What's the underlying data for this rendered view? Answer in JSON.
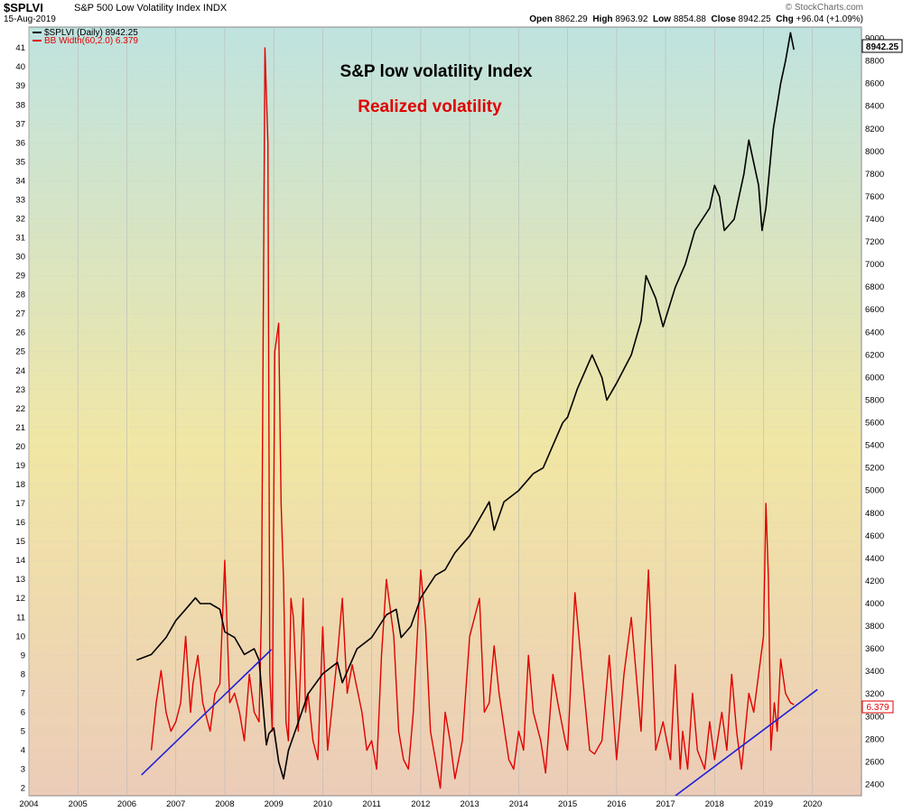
{
  "header": {
    "ticker": "$SPLVI",
    "name": "S&P 500 Low Volatility Index",
    "exchange": "INDX",
    "date": "15-Aug-2019",
    "watermark": "© StockCharts.com",
    "open_label": "Open",
    "open": "8862.29",
    "high_label": "High",
    "high": "8963.92",
    "low_label": "Low",
    "low": "8854.88",
    "close_label": "Close",
    "close": "8942.25",
    "chg_label": "Chg",
    "chg": "+96.04 (+1.09%)"
  },
  "legend": [
    {
      "label": "$SPLVI (Daily) 8942.25",
      "color": "#000000"
    },
    {
      "label": "BB Width(60,2.0) 6.379",
      "color": "#e00000"
    }
  ],
  "annotations": [
    {
      "text": "S&P low volatility Index",
      "color": "#000000"
    },
    {
      "text": "Realized volatility",
      "color": "#e00000"
    }
  ],
  "last_value_tags": {
    "price": "8942.25",
    "bbw": "6.379"
  },
  "colors": {
    "price": "#000000",
    "bbw": "#e00000",
    "trendline": "#1f1fd6",
    "bg_top": "#bfe3e0",
    "bg_mid": "#f1e6a4",
    "bg_bottom": "#ecccb8"
  },
  "chart_data": {
    "type": "line",
    "x_axis": {
      "ticks": [
        "2004",
        "2005",
        "2006",
        "2007",
        "2008",
        "2009",
        "2010",
        "2011",
        "2012",
        "2013",
        "2014",
        "2015",
        "2016",
        "2017",
        "2018",
        "2019",
        "2020"
      ],
      "range": [
        2004.0,
        2021.0
      ]
    },
    "left_axis": {
      "ticks": [
        2,
        3,
        4,
        5,
        6,
        7,
        8,
        9,
        10,
        11,
        12,
        13,
        14,
        15,
        16,
        17,
        18,
        19,
        20,
        21,
        22,
        23,
        24,
        25,
        26,
        27,
        28,
        29,
        30,
        31,
        32,
        33,
        34,
        35,
        36,
        37,
        38,
        39,
        40,
        41
      ],
      "range": [
        1.6,
        42.1
      ]
    },
    "right_axis": {
      "ticks": [
        2400,
        2600,
        2800,
        3000,
        3200,
        3400,
        3600,
        3800,
        4000,
        4200,
        4400,
        4600,
        4800,
        5000,
        5200,
        5400,
        5600,
        5800,
        6000,
        6200,
        6400,
        6600,
        6800,
        7000,
        7200,
        7400,
        7600,
        7800,
        8000,
        8200,
        8400,
        8600,
        8800,
        9000
      ],
      "range": [
        2300,
        9100
      ]
    },
    "series": [
      {
        "name": "$SPLVI (Daily)",
        "axis": "right",
        "x": [
          2006.2,
          2006.5,
          2006.8,
          2007.0,
          2007.2,
          2007.4,
          2007.5,
          2007.7,
          2007.9,
          2008.0,
          2008.2,
          2008.4,
          2008.6,
          2008.7,
          2008.8,
          2008.85,
          2008.9,
          2009.0,
          2009.1,
          2009.2,
          2009.3,
          2009.5,
          2009.7,
          2010.0,
          2010.3,
          2010.4,
          2010.5,
          2010.7,
          2011.0,
          2011.3,
          2011.5,
          2011.6,
          2011.8,
          2012.0,
          2012.3,
          2012.5,
          2012.7,
          2013.0,
          2013.2,
          2013.4,
          2013.5,
          2013.7,
          2014.0,
          2014.2,
          2014.3,
          2014.5,
          2014.7,
          2014.9,
          2015.0,
          2015.2,
          2015.4,
          2015.5,
          2015.7,
          2015.8,
          2016.0,
          2016.3,
          2016.5,
          2016.6,
          2016.8,
          2016.95,
          2017.2,
          2017.4,
          2017.6,
          2017.9,
          2018.0,
          2018.1,
          2018.2,
          2018.4,
          2018.6,
          2018.7,
          2018.8,
          2018.9,
          2018.97,
          2019.05,
          2019.2,
          2019.35,
          2019.45,
          2019.55,
          2019.62
        ],
        "values": [
          3500,
          3550,
          3700,
          3850,
          3950,
          4050,
          4000,
          4000,
          3950,
          3750,
          3700,
          3550,
          3600,
          3500,
          3000,
          2750,
          2850,
          2900,
          2600,
          2450,
          2700,
          2950,
          3200,
          3380,
          3480,
          3300,
          3400,
          3600,
          3700,
          3900,
          3950,
          3700,
          3800,
          4050,
          4250,
          4300,
          4450,
          4600,
          4750,
          4900,
          4650,
          4900,
          5000,
          5100,
          5150,
          5200,
          5400,
          5600,
          5650,
          5900,
          6100,
          6200,
          6000,
          5800,
          5950,
          6200,
          6500,
          6900,
          6700,
          6450,
          6800,
          7000,
          7300,
          7500,
          7700,
          7600,
          7300,
          7400,
          7800,
          8100,
          7900,
          7700,
          7300,
          7500,
          8200,
          8600,
          8800,
          9050,
          8900
        ]
      },
      {
        "name": "BB Width(60,2.0)",
        "axis": "left",
        "x": [
          2006.5,
          2006.6,
          2006.7,
          2006.8,
          2006.9,
          2007.0,
          2007.1,
          2007.2,
          2007.3,
          2007.35,
          2007.45,
          2007.55,
          2007.7,
          2007.8,
          2007.9,
          2008.0,
          2008.1,
          2008.2,
          2008.3,
          2008.4,
          2008.5,
          2008.6,
          2008.7,
          2008.75,
          2008.82,
          2008.88,
          2008.92,
          2008.97,
          2009.02,
          2009.1,
          2009.15,
          2009.2,
          2009.25,
          2009.3,
          2009.35,
          2009.4,
          2009.5,
          2009.6,
          2009.65,
          2009.7,
          2009.8,
          2009.9,
          2010.0,
          2010.1,
          2010.3,
          2010.4,
          2010.5,
          2010.6,
          2010.8,
          2010.9,
          2011.0,
          2011.1,
          2011.2,
          2011.3,
          2011.45,
          2011.55,
          2011.65,
          2011.75,
          2011.85,
          2012.0,
          2012.1,
          2012.2,
          2012.3,
          2012.4,
          2012.5,
          2012.6,
          2012.7,
          2012.85,
          2013.0,
          2013.2,
          2013.3,
          2013.4,
          2013.5,
          2013.6,
          2013.8,
          2013.9,
          2014.0,
          2014.1,
          2014.2,
          2014.3,
          2014.45,
          2014.55,
          2014.7,
          2014.8,
          2014.95,
          2015.0,
          2015.15,
          2015.3,
          2015.45,
          2015.55,
          2015.7,
          2015.85,
          2016.0,
          2016.15,
          2016.3,
          2016.5,
          2016.65,
          2016.8,
          2016.95,
          2017.1,
          2017.2,
          2017.3,
          2017.35,
          2017.45,
          2017.55,
          2017.65,
          2017.8,
          2017.9,
          2018.0,
          2018.15,
          2018.25,
          2018.35,
          2018.45,
          2018.55,
          2018.7,
          2018.8,
          2018.9,
          2019.0,
          2019.05,
          2019.1,
          2019.15,
          2019.22,
          2019.28,
          2019.35,
          2019.45,
          2019.55,
          2019.62
        ],
        "values": [
          4.0,
          6.5,
          8.2,
          6.0,
          5.0,
          5.5,
          6.5,
          10.0,
          6.0,
          7.5,
          9.0,
          6.5,
          5.0,
          7.0,
          7.5,
          14.0,
          6.5,
          7.0,
          6.0,
          4.5,
          8.0,
          6.0,
          5.5,
          11.5,
          41.0,
          36.0,
          8.0,
          5.0,
          25.0,
          26.5,
          17.0,
          13.0,
          5.5,
          4.5,
          12.0,
          11.0,
          5.0,
          12.0,
          6.0,
          7.0,
          4.5,
          3.5,
          10.5,
          4.0,
          9.0,
          12.0,
          7.0,
          8.5,
          6.0,
          4.0,
          4.5,
          3.0,
          9.0,
          13.0,
          10.0,
          5.0,
          3.5,
          3.0,
          6.0,
          13.5,
          10.5,
          5.0,
          3.5,
          2.0,
          6.0,
          4.5,
          2.5,
          4.5,
          10.0,
          12.0,
          6.0,
          6.5,
          9.5,
          7.0,
          3.5,
          3.0,
          5.0,
          4.0,
          9.0,
          6.0,
          4.5,
          2.8,
          8.0,
          6.5,
          4.5,
          4.0,
          12.3,
          8.0,
          4.0,
          3.8,
          4.5,
          9.0,
          3.5,
          8.0,
          11.0,
          5.0,
          13.5,
          4.0,
          5.5,
          3.5,
          8.5,
          3.0,
          5.0,
          3.0,
          7.0,
          4.0,
          3.0,
          5.5,
          3.5,
          6.0,
          4.0,
          8.0,
          5.0,
          3.0,
          7.0,
          6.0,
          8.0,
          10.0,
          17.0,
          13.0,
          4.0,
          6.5,
          5.0,
          8.8,
          7.0,
          6.5,
          6.4
        ]
      },
      {
        "name": "Trendline 1",
        "axis": "left",
        "x": [
          2006.3,
          2008.95
        ],
        "values": [
          2.7,
          9.3
        ]
      },
      {
        "name": "Trendline 2",
        "axis": "left",
        "x": [
          2017.2,
          2020.1
        ],
        "values": [
          1.6,
          7.2
        ]
      }
    ]
  }
}
